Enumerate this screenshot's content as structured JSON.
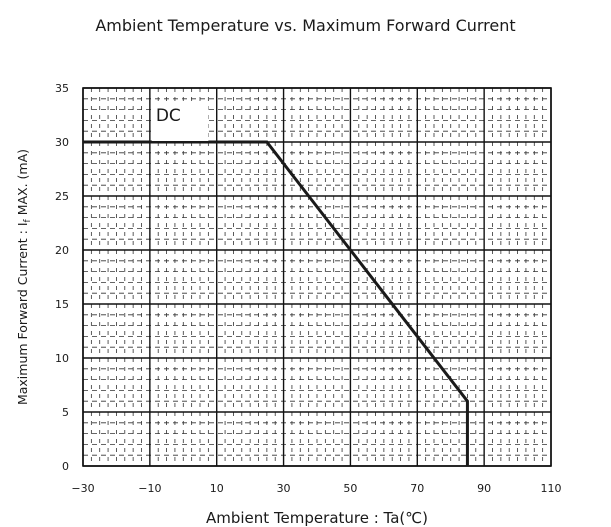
{
  "chart_data": {
    "type": "line",
    "title": "Ambient Temperature vs. Maximum Forward Current",
    "xlabel": "Ambient Temperature : Ta(℃)",
    "ylabel": "Maximum Forward Current : If MAX. (mA)",
    "xlim": [
      -30,
      110
    ],
    "ylim": [
      0,
      35
    ],
    "x_ticks": [
      -30,
      -10,
      10,
      30,
      50,
      70,
      90,
      110
    ],
    "y_ticks": [
      0,
      5,
      10,
      15,
      20,
      25,
      30,
      35
    ],
    "grid": true,
    "annotations": [
      {
        "text": "DC",
        "x": -10,
        "y": 32.5
      }
    ],
    "series": [
      {
        "name": "",
        "x": [
          -30,
          25,
          50,
          85,
          85
        ],
        "y": [
          30,
          30,
          20,
          6,
          0
        ],
        "color": "#1a1a1a"
      }
    ]
  }
}
